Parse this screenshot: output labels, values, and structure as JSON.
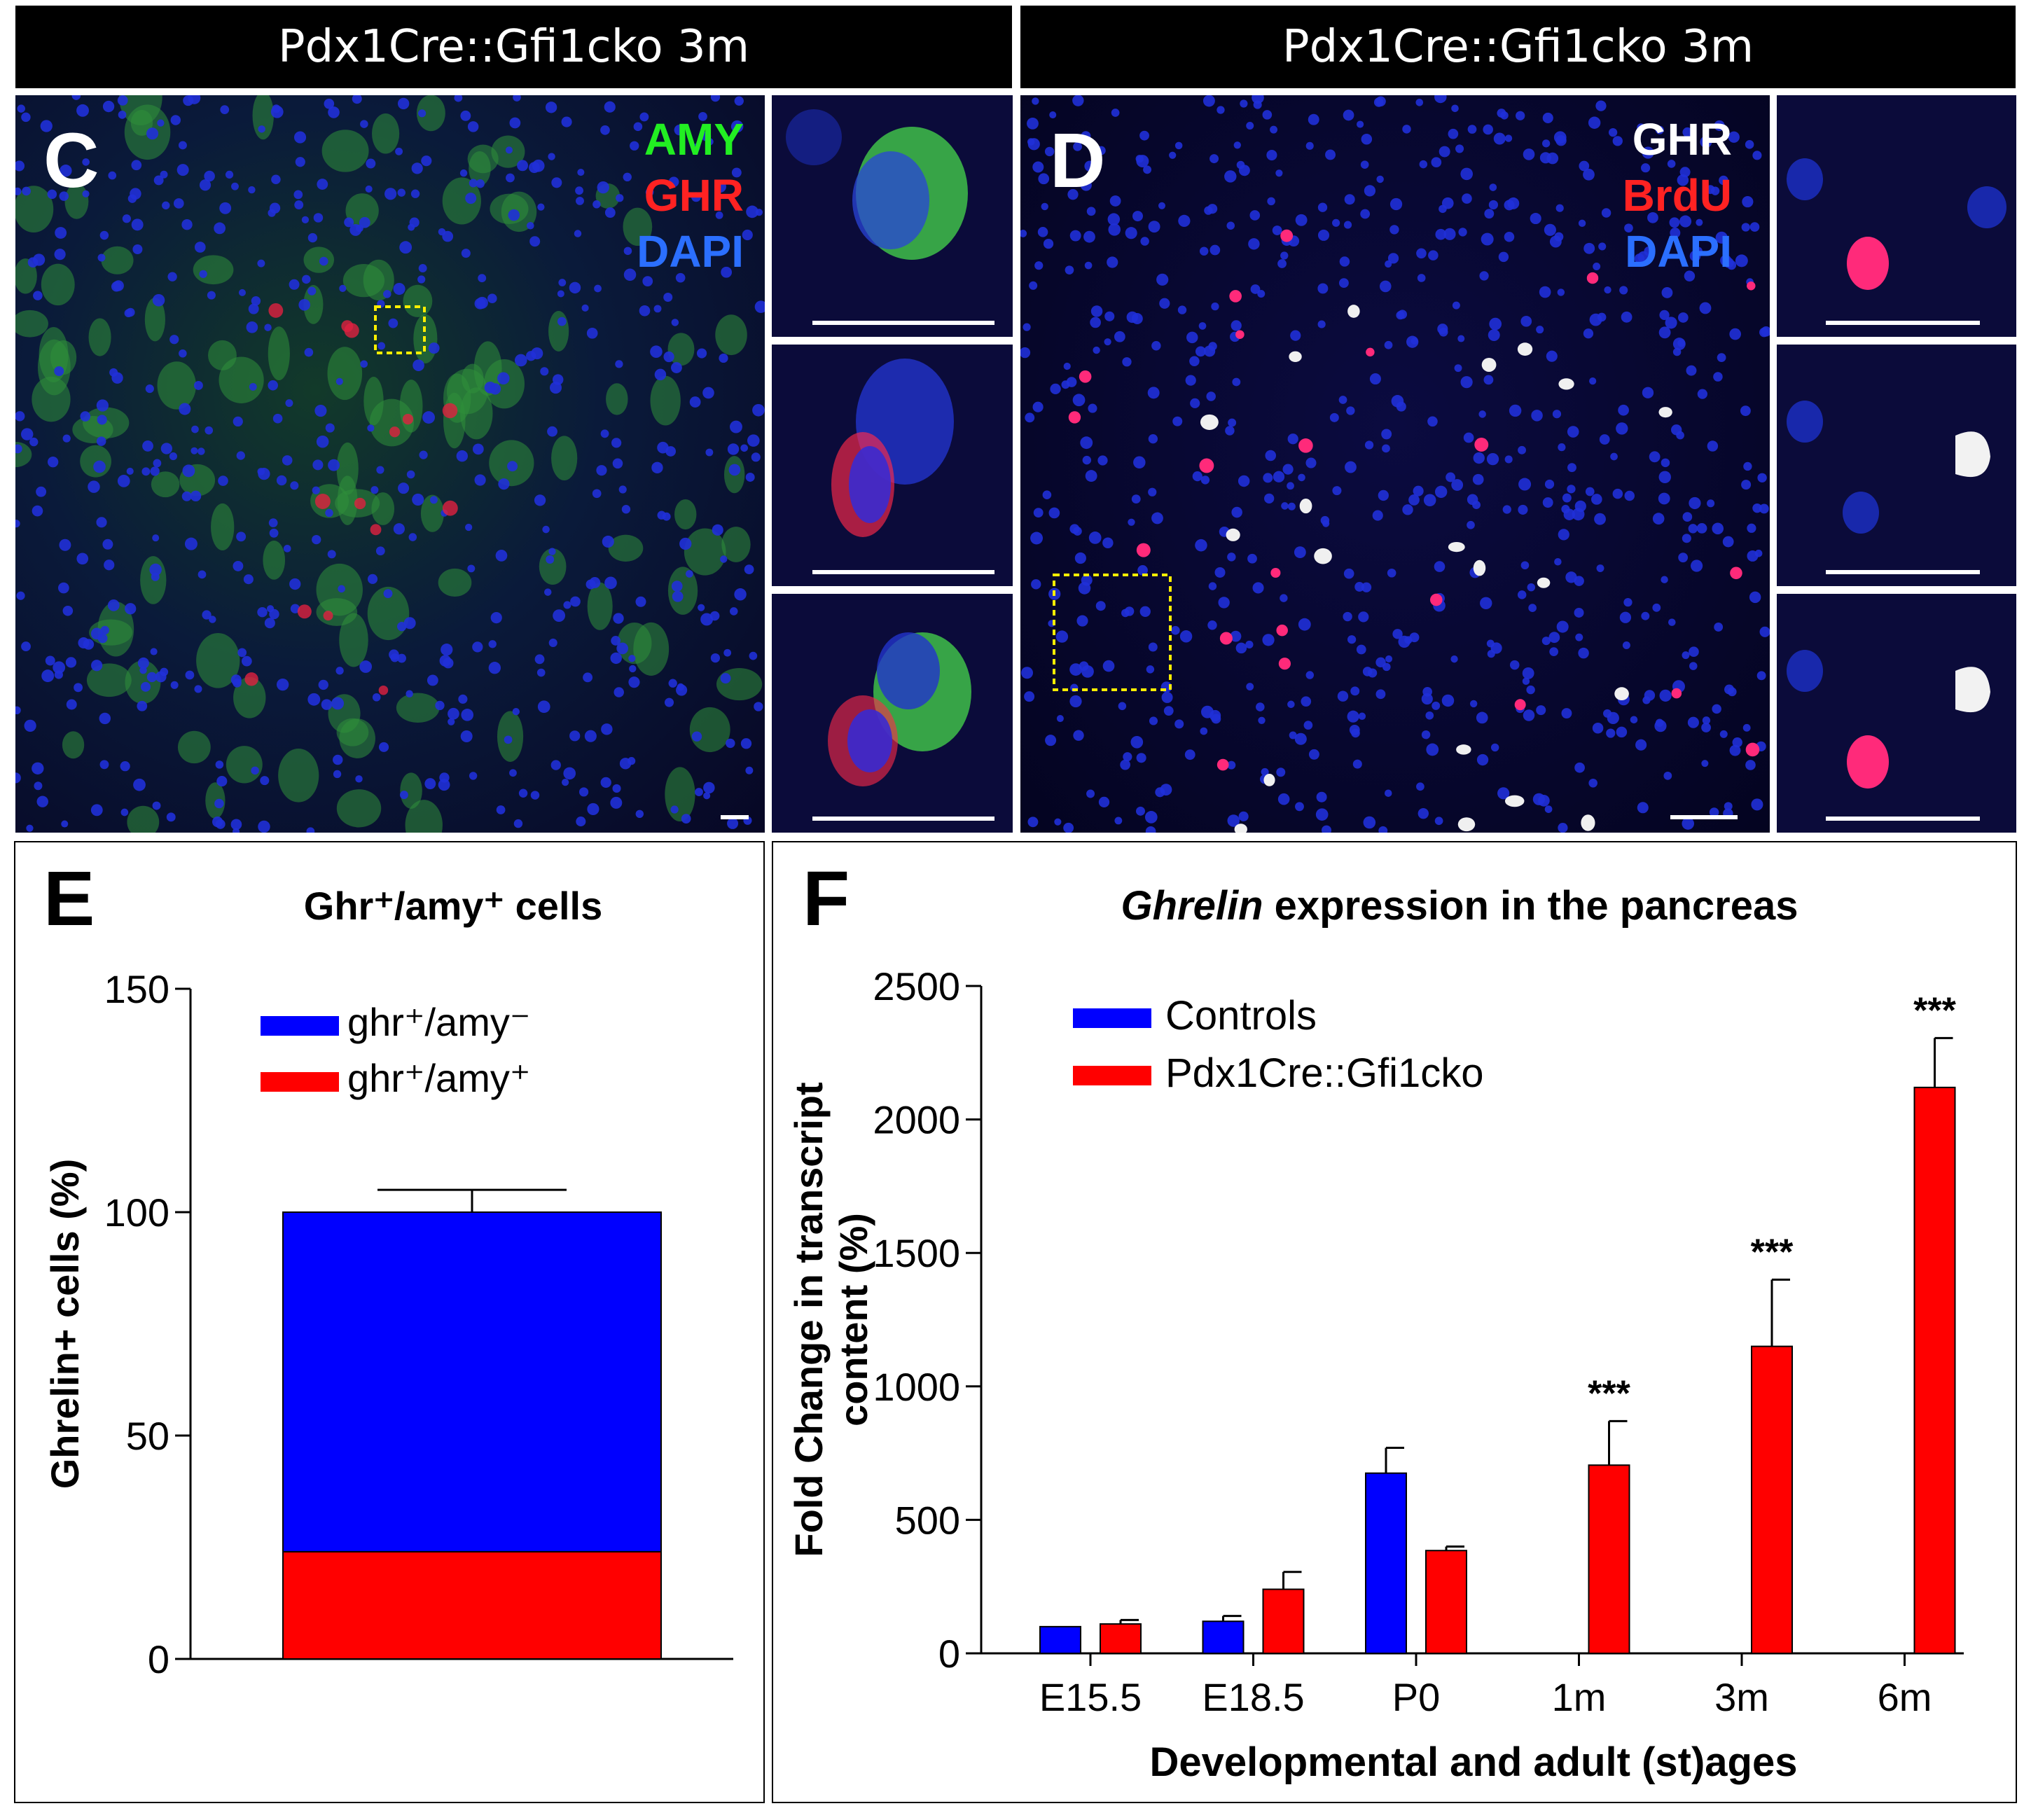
{
  "headers": {
    "left": "Pdx1Cre::Gfi1cko 3m",
    "right": "Pdx1Cre::Gfi1cko 3m"
  },
  "panel_c": {
    "label": "C",
    "channels": [
      {
        "name": "AMY",
        "color": "#22ee22"
      },
      {
        "name": "GHR",
        "color": "#ff2222"
      },
      {
        "name": "DAPI",
        "color": "#2b6fff"
      }
    ]
  },
  "panel_d": {
    "label": "D",
    "channels": [
      {
        "name": "GHR",
        "color": "#ffffff"
      },
      {
        "name": "BrdU",
        "color": "#ff2222"
      },
      {
        "name": "DAPI",
        "color": "#2b6fff"
      }
    ]
  },
  "colors": {
    "blue": "#0000ff",
    "red": "#ff0000"
  },
  "chart_data": [
    {
      "panel": "E",
      "type": "bar",
      "stacked": true,
      "title": "Ghr⁺/amy⁺ cells",
      "ylabel": "Ghrelin+ cells (%)",
      "xlabel": "",
      "ylim": [
        0,
        150
      ],
      "yticks": [
        0,
        50,
        100,
        150
      ],
      "categories": [
        ""
      ],
      "series": [
        {
          "name": "ghr⁺/amy⁺",
          "color": "#ff0000",
          "values": [
            24
          ],
          "error": [
            5
          ]
        },
        {
          "name": "ghr⁺/amy⁻",
          "color": "#0000ff",
          "values": [
            76
          ],
          "error": [
            5
          ]
        }
      ],
      "legend": [
        {
          "label": "ghr⁺/amy⁻",
          "color": "#0000ff"
        },
        {
          "label": "ghr⁺/amy⁺",
          "color": "#ff0000"
        }
      ],
      "legend_position": "top-left"
    },
    {
      "panel": "F",
      "type": "bar",
      "title_italic": "Ghrelin",
      "title_rest": " expression in the pancreas",
      "ylabel_line1": "Fold Change in transcript",
      "ylabel_line2": "content (%)",
      "xlabel": "Developmental and adult (st)ages",
      "ylim": [
        0,
        2500
      ],
      "yticks": [
        0,
        500,
        1000,
        1500,
        2000,
        2500
      ],
      "categories": [
        "E15.5",
        "E18.5",
        "P0",
        "1m",
        "3m",
        "6m"
      ],
      "series": [
        {
          "name": "Controls",
          "color": "#0000ff",
          "values": [
            100,
            120,
            675,
            0,
            0,
            0
          ],
          "error": [
            0,
            20,
            95,
            0,
            0,
            0
          ]
        },
        {
          "name": "Pdx1Cre::Gfi1cko",
          "color": "#ff0000",
          "values": [
            110,
            240,
            385,
            705,
            1150,
            2120
          ],
          "error": [
            15,
            65,
            15,
            165,
            250,
            185
          ]
        }
      ],
      "significance": [
        "",
        "",
        "",
        "***",
        "***",
        "***"
      ],
      "legend_position": "top-left"
    }
  ]
}
